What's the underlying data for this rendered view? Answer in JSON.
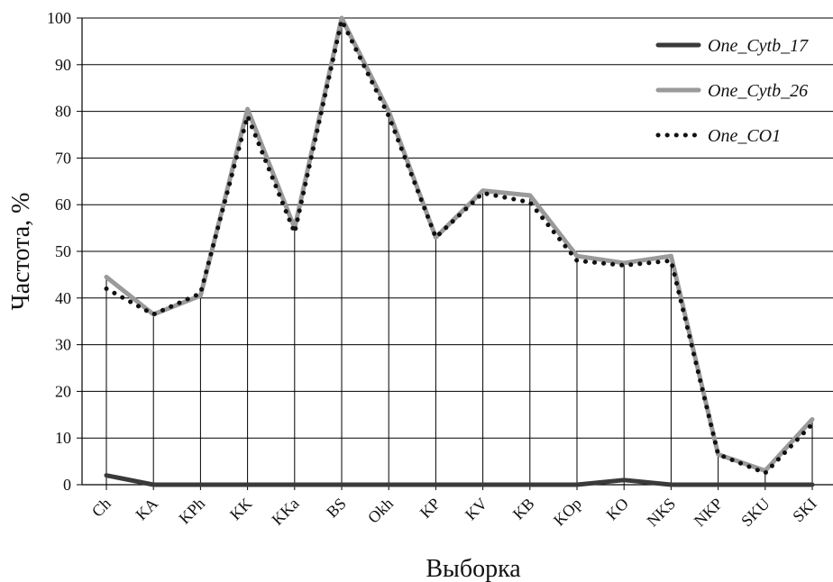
{
  "chart_data": {
    "type": "line",
    "title": "",
    "xlabel": "Выборка",
    "ylabel": "Частота, %",
    "ylim": [
      0,
      100
    ],
    "yticks": [
      0,
      10,
      20,
      30,
      40,
      50,
      60,
      70,
      80,
      90,
      100
    ],
    "grid": "horizontal gridlines and vertical drop lines",
    "legend_position": "top-right",
    "categories": [
      "Ch",
      "KA",
      "KPh",
      "KK",
      "KKa",
      "BS",
      "Okh",
      "KP",
      "KV",
      "KB",
      "KOp",
      "KO",
      "NKS",
      "NKP",
      "SKU",
      "SKI"
    ],
    "series": [
      {
        "name": "One_Cytb_17",
        "color": "#3a3a3a",
        "style": "solid-thick",
        "values": [
          2,
          0,
          0,
          0,
          0,
          0,
          0,
          0,
          0,
          0,
          0,
          1,
          0,
          0,
          0,
          0
        ]
      },
      {
        "name": "One_Cytb_26",
        "color": "#9a9a9a",
        "style": "solid-thick",
        "values": [
          44.5,
          36.5,
          40.5,
          80.5,
          55,
          100,
          80,
          53,
          63,
          62,
          49,
          47.5,
          49,
          6.5,
          3,
          14
        ]
      },
      {
        "name": "One_CO1",
        "color": "#111111",
        "style": "dotted",
        "values": [
          42,
          36.5,
          41,
          79,
          54,
          99.5,
          79,
          53,
          62.5,
          60.5,
          48,
          47,
          48,
          6.5,
          2.5,
          13
        ]
      }
    ]
  }
}
